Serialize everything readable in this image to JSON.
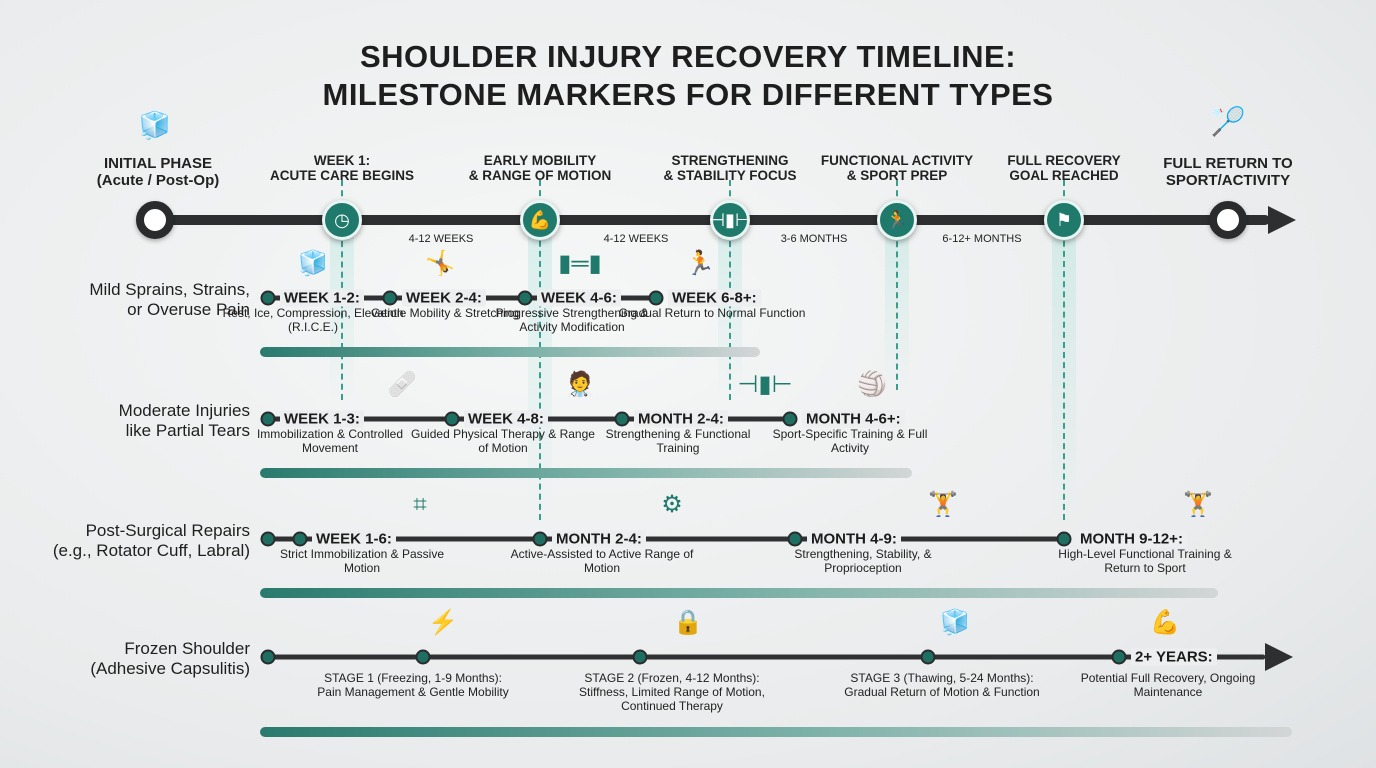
{
  "title": {
    "line1": "SHOULDER INJURY RECOVERY TIMELINE:",
    "line2": "MILESTONE MARKERS FOR DIFFERENT TYPES"
  },
  "colors": {
    "accent": "#1f7a6c",
    "line": "#2e2f30",
    "glow": "#a0e1d7"
  },
  "main_timeline": {
    "start": {
      "line1": "INITIAL PHASE",
      "line2": "(Acute / Post-Op)",
      "icon": "ice-pack-shoulder-icon"
    },
    "end": {
      "line1": "FULL RETURN TO",
      "line2": "SPORT/ACTIVITY",
      "icon": "athlete-icon"
    },
    "milestones": [
      {
        "line1": "WEEK 1:",
        "line2": "ACUTE CARE BEGINS",
        "icon": "clock-icon"
      },
      {
        "line1": "EARLY MOBILITY",
        "line2": "& RANGE OF MOTION",
        "icon": "flexed-arm-icon"
      },
      {
        "line1": "STRENGTHENING",
        "line2": "& STABILITY FOCUS",
        "icon": "dumbbell-icon"
      },
      {
        "line1": "FUNCTIONAL ACTIVITY",
        "line2": "& SPORT PREP",
        "icon": "runner-icon"
      },
      {
        "line1": "FULL RECOVERY",
        "line2": "GOAL REACHED",
        "icon": "flag-icon"
      }
    ],
    "durations": [
      "4-12 WEEKS",
      "4-12 WEEKS",
      "3-6 MONTHS",
      "6-12+ MONTHS"
    ]
  },
  "rows": [
    {
      "line1": "Mild Sprains, Strains,",
      "line2": "or Overuse Pain",
      "steps": [
        {
          "head": "WEEK 1-2:",
          "desc": "Rest, Ice, Compression, Elevation (R.I.C.E.)",
          "icon": "ice-pack-icon"
        },
        {
          "head": "WEEK 2-4:",
          "desc": "Gentle Mobility & Stretching",
          "icon": "stretching-icon"
        },
        {
          "head": "WEEK 4-6:",
          "desc": "Progressive Strengthening & Activity Modification",
          "icon": "resistance-band-icon"
        },
        {
          "head": "WEEK 6-8+:",
          "desc": "Gradual Return to Normal Function",
          "icon": "runner-icon"
        }
      ]
    },
    {
      "line1": "Moderate Injuries",
      "line2": "like Partial Tears",
      "steps": [
        {
          "head": "WEEK 1-3:",
          "desc": "Immobilization & Controlled Movement",
          "icon": "sling-icon"
        },
        {
          "head": "WEEK 4-8:",
          "desc": "Guided Physical Therapy & Range of Motion",
          "icon": "therapist-icon"
        },
        {
          "head": "MONTH 2-4:",
          "desc": "Strengthening & Functional Training",
          "icon": "dumbbell-icon"
        },
        {
          "head": "MONTH 4-6+:",
          "desc": "Sport-Specific Training & Full Activity",
          "icon": "volleyball-player-icon"
        }
      ]
    },
    {
      "line1": "Post-Surgical Repairs",
      "line2": "(e.g., Rotator Cuff, Labral)",
      "steps": [
        {
          "head": "WEEK 1-6:",
          "desc": "Strict Immobilization & Passive Motion",
          "icon": "stitches-icon"
        },
        {
          "head": "MONTH 2-4:",
          "desc": "Active-Assisted to Active Range of Motion",
          "icon": "pulley-exercise-icon"
        },
        {
          "head": "MONTH 4-9:",
          "desc": "Strengthening, Stability, & Proprioception",
          "icon": "hand-dumbbell-icon"
        },
        {
          "head": "MONTH 9-12+:",
          "desc": "High-Level Functional Training & Return to Sport",
          "icon": "weightlifter-icon"
        }
      ]
    },
    {
      "line1": "Frozen Shoulder",
      "line2": "(Adhesive Capsulitis)",
      "steps": [
        {
          "head": "",
          "desc": "STAGE 1 (Freezing, 1-9 Months): Pain Management & Gentle Mobility",
          "icon": "shoulder-pain-icon"
        },
        {
          "head": "",
          "desc": "STAGE 2 (Frozen, 4-12 Months): Stiffness, Limited Range of Motion, Continued Therapy",
          "icon": "locked-shoulder-icon"
        },
        {
          "head": "",
          "desc": "STAGE 3 (Thawing, 5-24 Months): Gradual Return of Motion & Function",
          "icon": "melting-ice-icon"
        },
        {
          "head": "2+ YEARS:",
          "desc": "Potential Full Recovery, Ongoing Maintenance",
          "icon": "flexing-person-icon"
        }
      ]
    }
  ]
}
